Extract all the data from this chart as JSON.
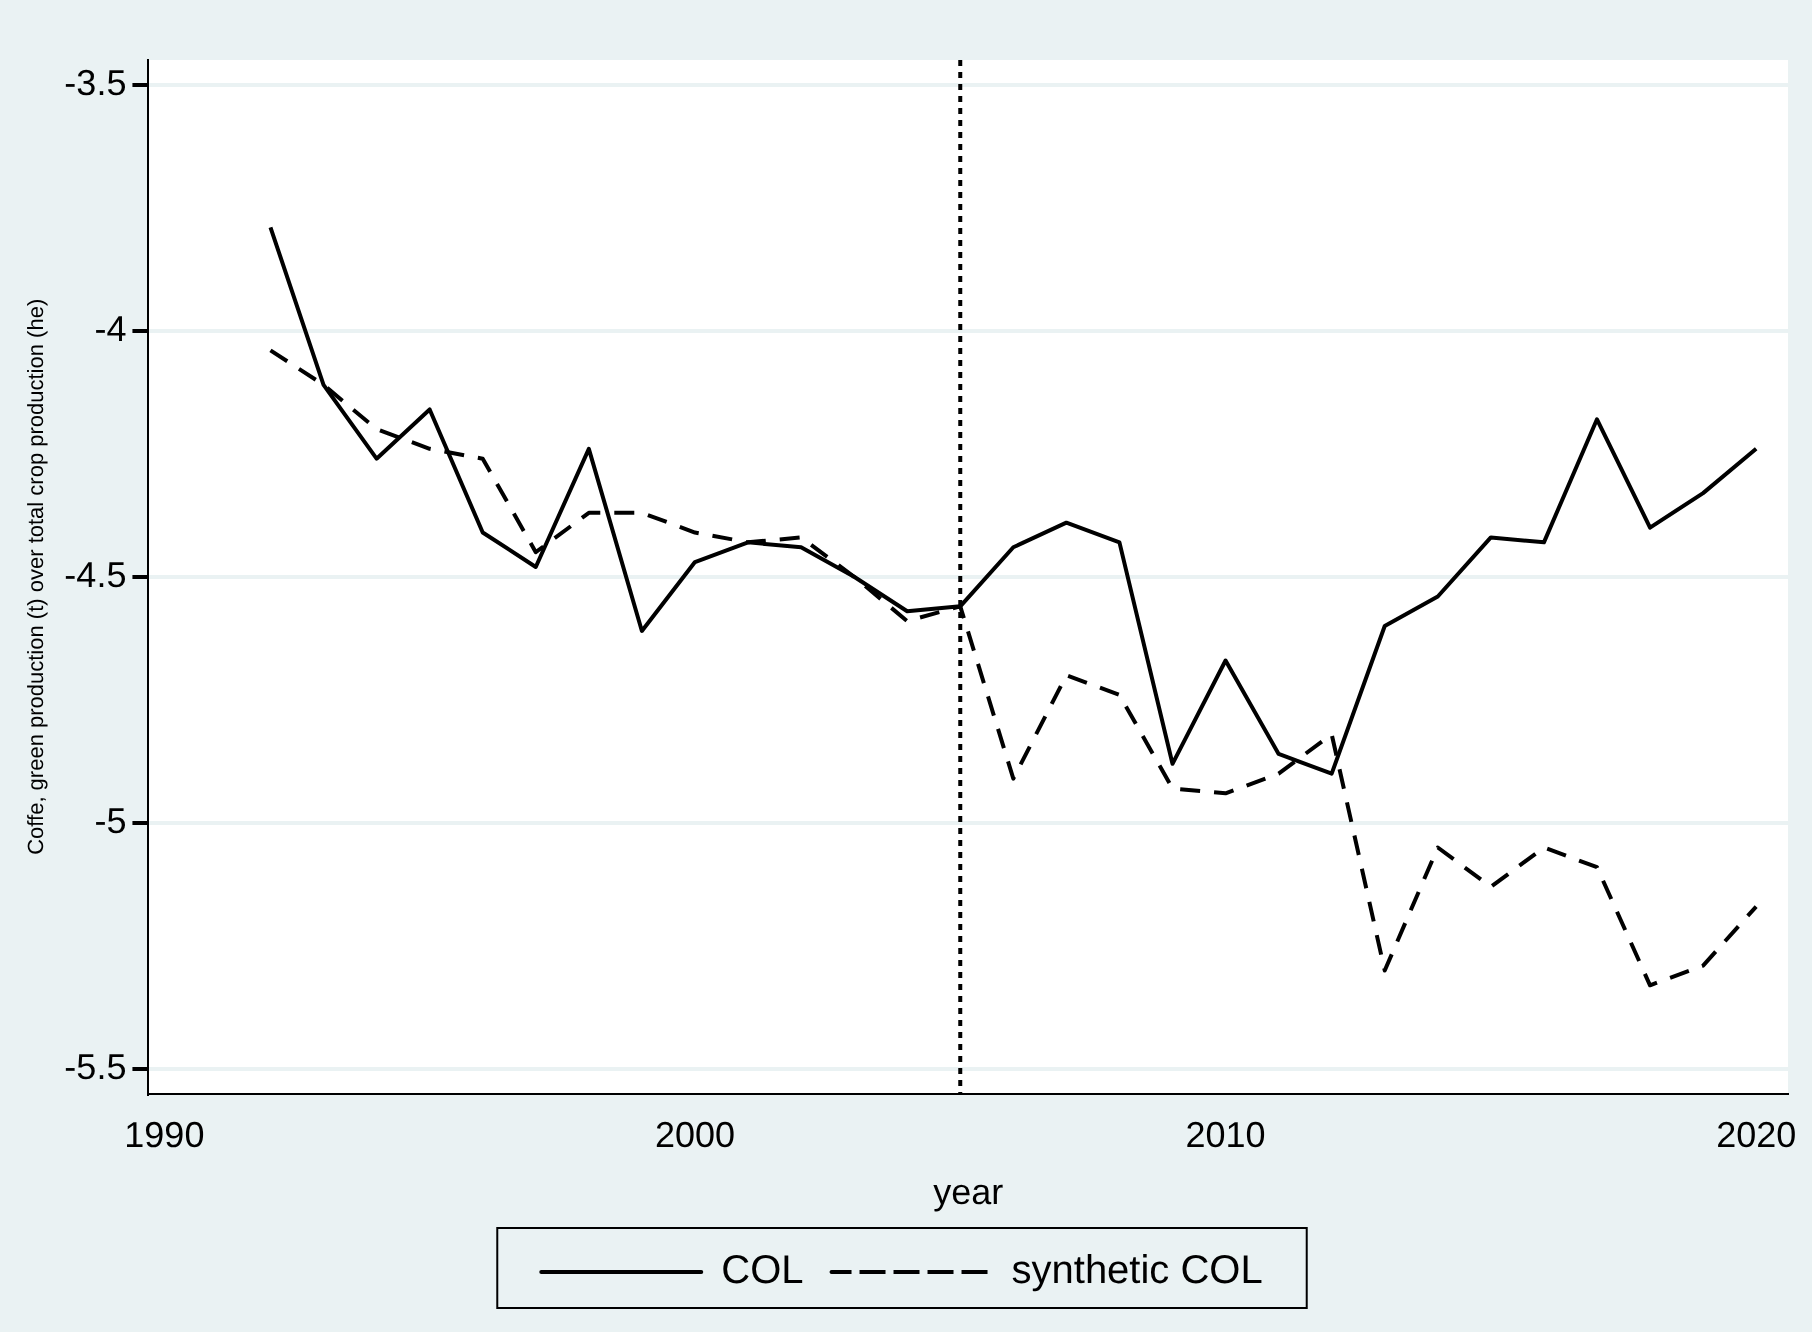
{
  "chart_data": {
    "type": "line",
    "xlabel": "year",
    "ylabel": "Coffe, green production (t) over total crop production (he)",
    "x": [
      1992,
      1993,
      1994,
      1995,
      1996,
      1997,
      1998,
      1999,
      2000,
      2001,
      2002,
      2003,
      2004,
      2005,
      2006,
      2007,
      2008,
      2009,
      2010,
      2011,
      2012,
      2013,
      2014,
      2015,
      2016,
      2017,
      2018,
      2019,
      2020
    ],
    "series": [
      {
        "name": "COL",
        "color": "#000000",
        "line_style": "solid",
        "values": [
          -3.79,
          -4.11,
          -4.26,
          -4.16,
          -4.41,
          -4.48,
          -4.24,
          -4.61,
          -4.47,
          -4.43,
          -4.44,
          -4.5,
          -4.57,
          -4.56,
          -4.44,
          -4.39,
          -4.43,
          -4.88,
          -4.67,
          -4.86,
          -4.9,
          -4.6,
          -4.54,
          -4.42,
          -4.43,
          -4.18,
          -4.4,
          -4.33,
          -4.24
        ]
      },
      {
        "name": "synthetic COL",
        "color": "#000000",
        "line_style": "dashed",
        "values": [
          -4.04,
          -4.11,
          -4.2,
          -4.24,
          -4.26,
          -4.45,
          -4.37,
          -4.37,
          -4.41,
          -4.43,
          -4.42,
          -4.5,
          -4.59,
          -4.56,
          -4.91,
          -4.7,
          -4.74,
          -4.93,
          -4.94,
          -4.9,
          -4.82,
          -5.3,
          -5.05,
          -5.13,
          -5.05,
          -5.09,
          -5.33,
          -5.29,
          -5.17
        ]
      }
    ],
    "xlim": [
      1989.7,
      2020.6
    ],
    "xticks": [
      1990,
      2000,
      2010,
      2020
    ],
    "ylim": [
      -5.55,
      -3.45
    ],
    "yticks": [
      -5.5,
      -5,
      -4.5,
      -4,
      -3.5
    ],
    "ref_lines": [
      {
        "axis": "x",
        "value": 2005,
        "color": "#000000",
        "line_style": "dotted"
      }
    ],
    "grid": "y",
    "legend": "bottom",
    "marker": "none"
  }
}
